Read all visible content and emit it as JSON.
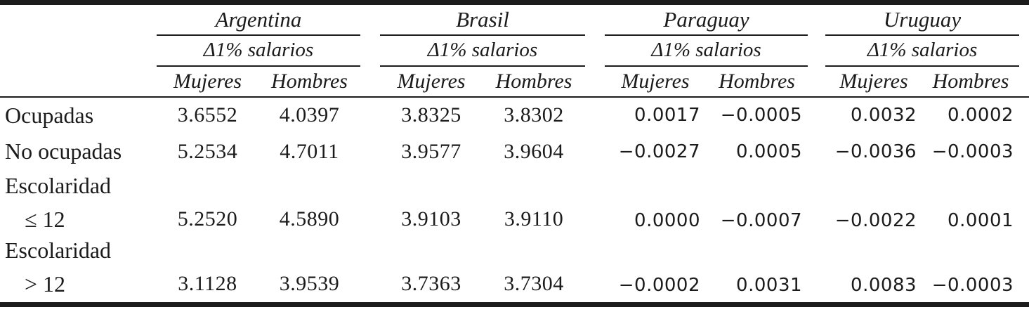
{
  "table": {
    "title_semantic": "wage-change-effects-by-country",
    "groups": [
      {
        "country": "Argentina",
        "subheader": "Δ1% salarios"
      },
      {
        "country": "Brasil",
        "subheader": "Δ1% salarios"
      },
      {
        "country": "Paraguay",
        "subheader": "Δ1% salarios"
      },
      {
        "country": "Uruguay",
        "subheader": "Δ1% salarios"
      }
    ],
    "col_headers": {
      "mujeres": "Mujeres",
      "hombres": "Hombres"
    },
    "rows": [
      {
        "label": "Ocupadas",
        "values": [
          "3.6552",
          "4.0397",
          "3.8325",
          "3.8302",
          "0.0017",
          "−0.0005",
          "0.0032",
          "0.0002"
        ]
      },
      {
        "label": "No ocupadas",
        "values": [
          "5.2534",
          "4.7011",
          "3.9577",
          "3.9604",
          "−0.0027",
          "0.0005",
          "−0.0036",
          "−0.0003"
        ]
      },
      {
        "label": "Escolaridad",
        "label2": "≤ 12",
        "values": [
          "5.2520",
          "4.5890",
          "3.9103",
          "3.9110",
          "0.0000",
          "−0.0007",
          "−0.0022",
          "0.0001"
        ]
      },
      {
        "label": "Escolaridad",
        "label2": "> 12",
        "values": [
          "3.1128",
          "3.9539",
          "3.7363",
          "3.7304",
          "−0.0002",
          "0.0031",
          "0.0083",
          "−0.0003"
        ]
      }
    ]
  }
}
